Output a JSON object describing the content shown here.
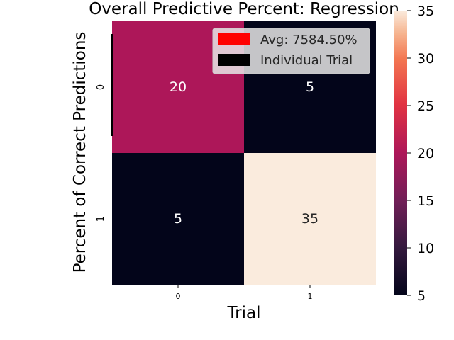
{
  "chart_data": {
    "type": "heatmap",
    "title": "Overall Predictive Percent: Regression",
    "xlabel": "Trial",
    "ylabel": "Percent of Correct Predictions",
    "x_tick_labels": [
      "0",
      "1"
    ],
    "y_tick_labels": [
      "0",
      "1"
    ],
    "values": [
      [
        20,
        5
      ],
      [
        5,
        35
      ]
    ],
    "cell_labels": [
      [
        "20",
        "5"
      ],
      [
        "5",
        "35"
      ]
    ],
    "colorbar": {
      "min": 5,
      "max": 35,
      "ticks": [
        5,
        10,
        15,
        20,
        25,
        30,
        35
      ],
      "tick_labels": [
        "5",
        "10",
        "15",
        "20",
        "25",
        "30",
        "35"
      ]
    },
    "legend": {
      "position": "top-right",
      "entries": [
        {
          "label": "Avg: 7584.50%",
          "color": "#ff0000"
        },
        {
          "label": "Individual Trial",
          "color": "#000000"
        }
      ]
    },
    "grid": false
  }
}
